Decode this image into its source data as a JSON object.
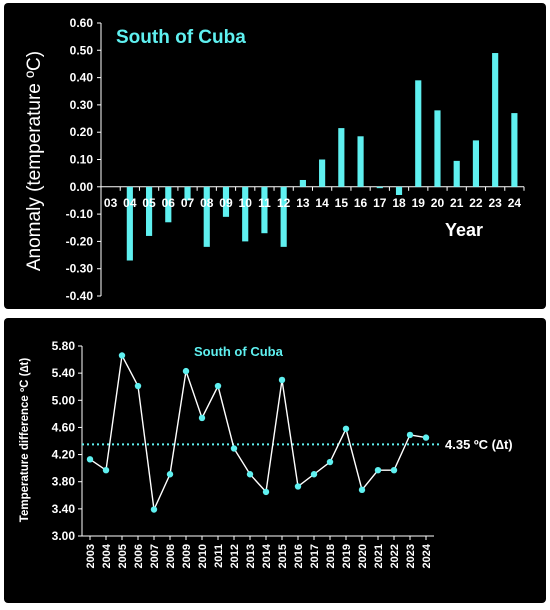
{
  "chart_data": [
    {
      "type": "bar",
      "title": "South of Cuba",
      "ylabel": "Anomaly (temperature ºC)",
      "xlabel": "Year",
      "ylim": [
        -0.4,
        0.6
      ],
      "yticks": [
        "0.60",
        "0.50",
        "0.40",
        "0.30",
        "0.20",
        "0.10",
        "0.00",
        "-0.10",
        "-0.20",
        "-0.30",
        "-0.40"
      ],
      "categories": [
        "03",
        "04",
        "05",
        "06",
        "07",
        "08",
        "09",
        "10",
        "11",
        "12",
        "13",
        "14",
        "15",
        "16",
        "17",
        "18",
        "19",
        "20",
        "21",
        "22",
        "23",
        "24"
      ],
      "values": [
        0.0,
        -0.27,
        -0.18,
        -0.13,
        -0.05,
        -0.22,
        -0.11,
        -0.2,
        -0.17,
        -0.22,
        0.025,
        0.1,
        0.215,
        0.185,
        -0.005,
        -0.03,
        0.39,
        0.28,
        0.095,
        0.17,
        0.49,
        0.27
      ],
      "bar_color": "#5ff0f0",
      "background": "#000000"
    },
    {
      "type": "line",
      "title": "South of Cuba",
      "ylabel": "Temperature difference ºC (∆t)",
      "ylim": [
        3.0,
        5.8
      ],
      "yticks": [
        "5.80",
        "5.40",
        "5.00",
        "4.60",
        "4.20",
        "3.80",
        "3.40",
        "3.00"
      ],
      "categories": [
        "2003",
        "2004",
        "2005",
        "2006",
        "2007",
        "2008",
        "2009",
        "2010",
        "2011",
        "2012",
        "2013",
        "2014",
        "2015",
        "2016",
        "2017",
        "2018",
        "2019",
        "2020",
        "2021",
        "2022",
        "2023",
        "2024"
      ],
      "values": [
        4.13,
        3.97,
        5.66,
        5.21,
        3.39,
        3.91,
        5.43,
        4.74,
        5.21,
        4.29,
        3.91,
        3.65,
        5.3,
        3.73,
        3.91,
        4.09,
        4.58,
        3.68,
        3.97,
        3.97,
        4.49,
        4.45
      ],
      "mean_value": 4.35,
      "mean_label": "4.35 ºC (∆t)",
      "line_color": "#ffffff",
      "point_color": "#5ff0f0",
      "mean_line_color": "#5ff0f0",
      "background": "#000000"
    }
  ]
}
